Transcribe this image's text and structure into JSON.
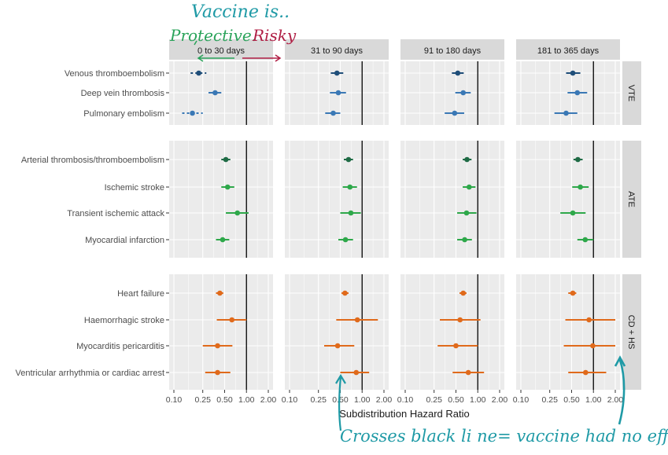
{
  "chart_data": {
    "type": "forest",
    "xlabel": "Subdistribution Hazard Ratio",
    "x_scale": "log",
    "xlim": [
      0.1,
      2.0
    ],
    "x_ticks": [
      {
        "value": 0.1,
        "label": "0.10"
      },
      {
        "value": 0.25,
        "label": "0.25"
      },
      {
        "value": 0.5,
        "label": "0.50"
      },
      {
        "value": 1.0,
        "label": "1.00"
      },
      {
        "value": 2.0,
        "label": "2.00"
      }
    ],
    "reference_line": 1.0,
    "periods": [
      "0 to 30 days",
      "31 to 90 days",
      "91 to 180 days",
      "181 to 365 days"
    ],
    "groups": [
      {
        "name": "VTE",
        "outcomes": [
          {
            "label": "Venous thromboembolism",
            "color": "#1f4e79",
            "hr": [
              0.22,
              0.45,
              0.53,
              0.52
            ],
            "lo": [
              0.17,
              0.37,
              0.44,
              0.42
            ],
            "hi": [
              0.28,
              0.55,
              0.64,
              0.66
            ]
          },
          {
            "label": "Deep vein thrombosis",
            "color": "#3a78b5",
            "hr": [
              0.37,
              0.47,
              0.63,
              0.6
            ],
            "lo": [
              0.3,
              0.36,
              0.49,
              0.44
            ],
            "hi": [
              0.45,
              0.6,
              0.8,
              0.82
            ]
          },
          {
            "label": "Pulmonary embolism",
            "color": "#3a78b5",
            "hr": [
              0.18,
              0.4,
              0.48,
              0.42
            ],
            "lo": [
              0.13,
              0.31,
              0.35,
              0.29
            ],
            "hi": [
              0.25,
              0.5,
              0.65,
              0.6
            ]
          }
        ]
      },
      {
        "name": "ATE",
        "outcomes": [
          {
            "label": "Arterial thrombosis/thromboembolism",
            "color": "#1f6b45",
            "hr": [
              0.52,
              0.65,
              0.71,
              0.61
            ],
            "lo": [
              0.45,
              0.56,
              0.62,
              0.53
            ],
            "hi": [
              0.6,
              0.75,
              0.82,
              0.71
            ]
          },
          {
            "label": "Ischemic stroke",
            "color": "#2ea84a",
            "hr": [
              0.55,
              0.68,
              0.76,
              0.66
            ],
            "lo": [
              0.45,
              0.54,
              0.62,
              0.51
            ],
            "hi": [
              0.68,
              0.85,
              0.93,
              0.86
            ]
          },
          {
            "label": "Transient ischemic attack",
            "color": "#2ea84a",
            "hr": [
              0.75,
              0.7,
              0.7,
              0.52
            ],
            "lo": [
              0.52,
              0.5,
              0.52,
              0.35
            ],
            "hi": [
              1.07,
              0.96,
              0.96,
              0.78
            ]
          },
          {
            "label": "Myocardial infarction",
            "color": "#2ea84a",
            "hr": [
              0.47,
              0.59,
              0.66,
              0.77
            ],
            "lo": [
              0.38,
              0.47,
              0.52,
              0.6
            ],
            "hi": [
              0.58,
              0.75,
              0.83,
              1.0
            ]
          }
        ]
      },
      {
        "name": "CD + HS",
        "outcomes": [
          {
            "label": "Heart failure",
            "color": "#e06a1b",
            "hr": [
              0.43,
              0.58,
              0.63,
              0.52
            ],
            "lo": [
              0.38,
              0.52,
              0.56,
              0.45
            ],
            "hi": [
              0.48,
              0.65,
              0.7,
              0.58
            ]
          },
          {
            "label": "Haemorrhagic stroke",
            "color": "#e06a1b",
            "hr": [
              0.63,
              0.86,
              0.57,
              0.87
            ],
            "lo": [
              0.39,
              0.44,
              0.3,
              0.41
            ],
            "hi": [
              1.0,
              1.65,
              1.09,
              2.0
            ]
          },
          {
            "label": "Myocarditis pericarditis",
            "color": "#e06a1b",
            "hr": [
              0.4,
              0.46,
              0.5,
              0.98
            ],
            "lo": [
              0.25,
              0.3,
              0.28,
              0.39
            ],
            "hi": [
              0.64,
              0.78,
              1.0,
              2.0
            ]
          },
          {
            "label": "Ventricular arrhythmia or cardiac arrest",
            "color": "#e06a1b",
            "hr": [
              0.4,
              0.83,
              0.74,
              0.78
            ],
            "lo": [
              0.27,
              0.5,
              0.45,
              0.45
            ],
            "hi": [
              0.6,
              1.25,
              1.22,
              1.5
            ]
          }
        ]
      }
    ]
  },
  "annotations": {
    "vaccine_is": "Vaccine is..",
    "protective": "Protective.",
    "risky": "Risky",
    "crosses_note": "Crosses black li ne= vaccine had no effect"
  },
  "colors": {
    "panel_bg": "#ebebeb",
    "strip_bg": "#d9d9d9",
    "grid": "#ffffff",
    "ref_line": "#000000",
    "teal_note": "#1f9aa6",
    "green_note": "#2aa35a",
    "red_note": "#b01f45"
  }
}
